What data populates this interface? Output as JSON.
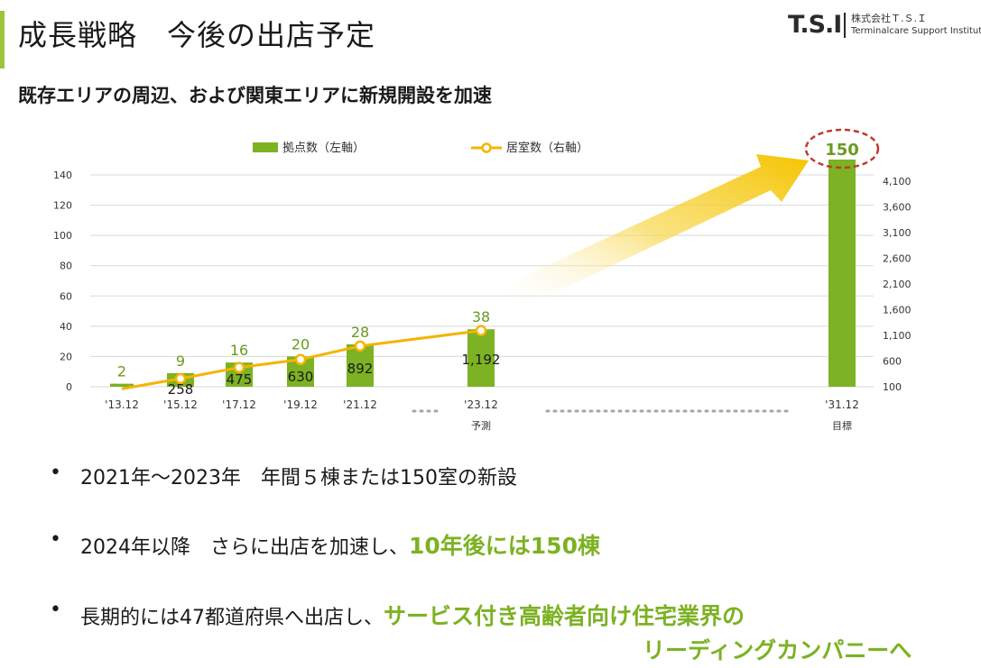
{
  "header": {
    "title": "成長戦略　今後の出店予定",
    "subtitle": "既存エリアの周辺、および関東エリアに新規開設を加速"
  },
  "logo": {
    "mark": "T.S.I",
    "name_jp": "株式会社Ｔ.Ｓ.Ｉ",
    "name_en": "Terminalcare Support Institute"
  },
  "chart_data": {
    "type": "bar",
    "categories": [
      "'13.12",
      "'15.12",
      "'17.12",
      "'19.12",
      "'21.12",
      "'23.12",
      "'31.12"
    ],
    "category_sublabels": [
      "",
      "",
      "",
      "",
      "",
      "予測",
      "目標"
    ],
    "series": [
      {
        "name": "拠点数（左軸）",
        "type": "bar",
        "axis": "left",
        "values": [
          2,
          9,
          16,
          20,
          28,
          38,
          150
        ],
        "value_labels": [
          "2",
          "9",
          "16",
          "20",
          "28",
          "38",
          "150"
        ]
      },
      {
        "name": "居室数（右軸）",
        "type": "line",
        "axis": "right",
        "values": [
          60,
          258,
          475,
          630,
          892,
          1192,
          null
        ],
        "value_labels": [
          "",
          "258",
          "475",
          "630",
          "892",
          "1,192",
          ""
        ]
      }
    ],
    "left_axis": {
      "ticks": [
        "0",
        "20",
        "40",
        "60",
        "80",
        "100",
        "120",
        "140"
      ],
      "ylim": [
        0,
        140
      ]
    },
    "right_axis": {
      "ticks": [
        "100",
        "600",
        "1,100",
        "1,600",
        "2,100",
        "2,600",
        "3,100",
        "3,600",
        "4,100"
      ]
    },
    "grid": true,
    "legend": "top",
    "colors": {
      "bar": "#7cb223",
      "line": "#f5b400",
      "label_green": "#6a9a1f",
      "highlight_ring": "#c0392b",
      "arrow": "#f5c400"
    }
  },
  "bullets": [
    {
      "dot": "•",
      "text": "2021年～2023年　年間５棟または150室の新設",
      "highlight": ""
    },
    {
      "dot": "•",
      "text": "2024年以降　さらに出店を加速し、",
      "highlight": "10年後には150棟"
    },
    {
      "dot": "•",
      "text": "長期的には47都道府県へ出店し、",
      "highlight": "サービス付き高齢者向け住宅業界の",
      "highlight_cont": "リーディングカンパニーへ"
    }
  ]
}
